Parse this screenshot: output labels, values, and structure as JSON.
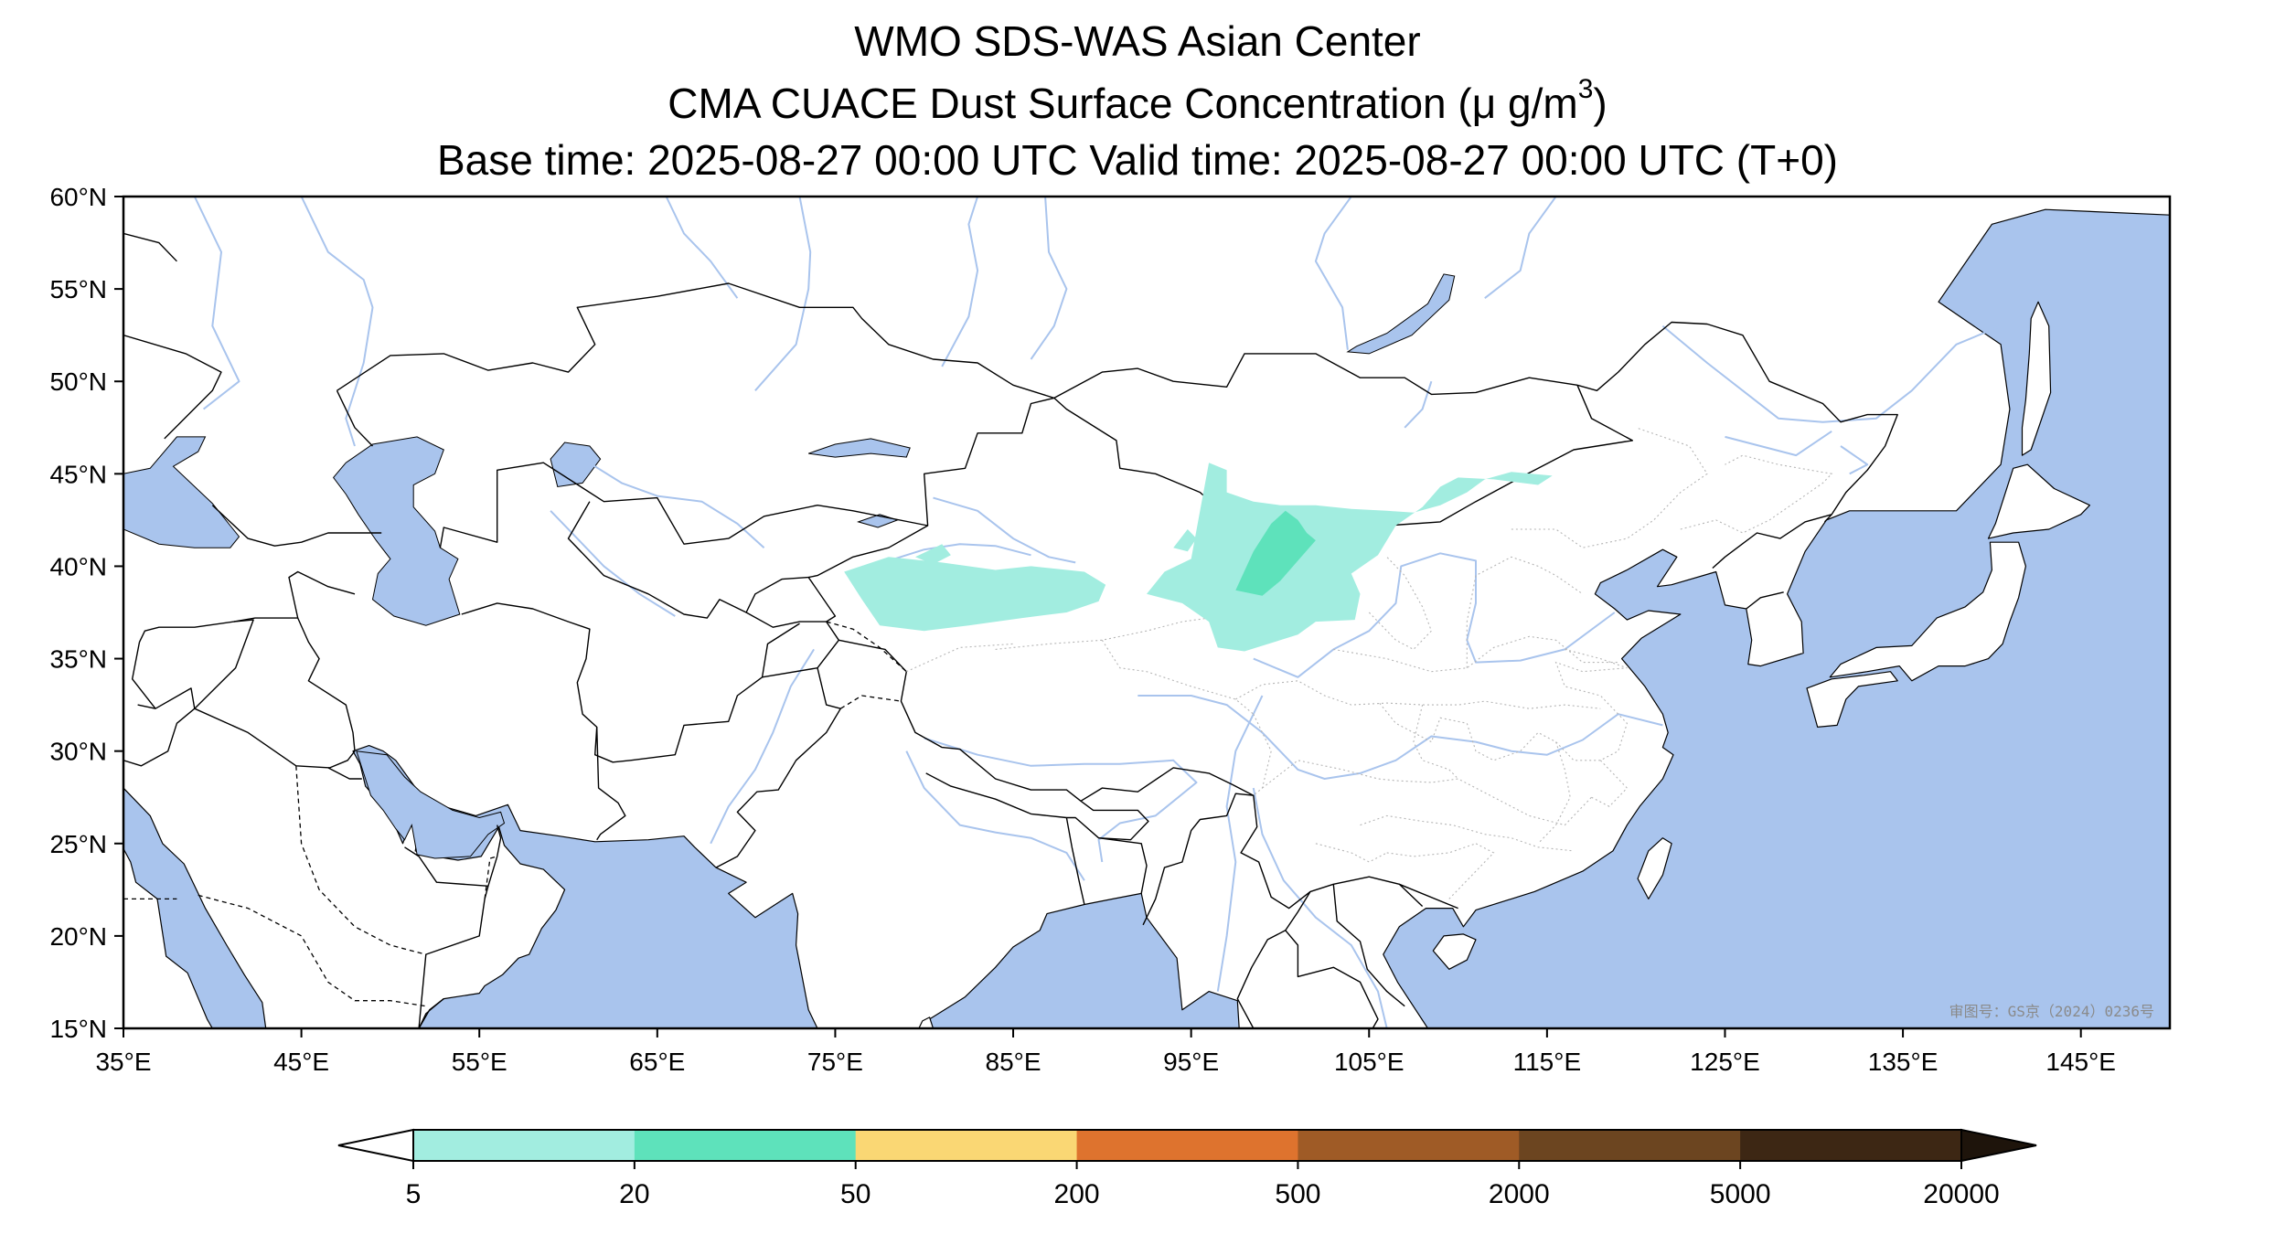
{
  "title": {
    "line1": "WMO SDS-WAS Asian Center",
    "line2_main": "CMA CUACE Dust Surface Concentration (μ g/m",
    "line2_sup": "3",
    "line2_end": ")",
    "line3": "Base time: 2025-08-27 00:00 UTC Valid time: 2025-08-27 00:00 UTC (T+0)"
  },
  "map": {
    "lon_range": [
      35,
      150
    ],
    "lat_range": [
      15,
      60
    ],
    "lon_ticks": [
      {
        "value": 35,
        "label": "35°E"
      },
      {
        "value": 45,
        "label": "45°E"
      },
      {
        "value": 55,
        "label": "55°E"
      },
      {
        "value": 65,
        "label": "65°E"
      },
      {
        "value": 75,
        "label": "75°E"
      },
      {
        "value": 85,
        "label": "85°E"
      },
      {
        "value": 95,
        "label": "95°E"
      },
      {
        "value": 105,
        "label": "105°E"
      },
      {
        "value": 115,
        "label": "115°E"
      },
      {
        "value": 125,
        "label": "125°E"
      },
      {
        "value": 135,
        "label": "135°E"
      },
      {
        "value": 145,
        "label": "145°E"
      }
    ],
    "lat_ticks": [
      {
        "value": 60,
        "label": "60°N"
      },
      {
        "value": 55,
        "label": "55°N"
      },
      {
        "value": 50,
        "label": "50°N"
      },
      {
        "value": 45,
        "label": "45°N"
      },
      {
        "value": 40,
        "label": "40°N"
      },
      {
        "value": 35,
        "label": "35°N"
      },
      {
        "value": 30,
        "label": "30°N"
      },
      {
        "value": 25,
        "label": "25°N"
      },
      {
        "value": 20,
        "label": "20°N"
      },
      {
        "value": 15,
        "label": "15°N"
      }
    ],
    "ocean_color": "#a9c4ed",
    "land_color": "#ffffff",
    "border_color": "#000000",
    "river_color": "#a9c4ed",
    "credit_text": "审图号：GS京（2024）0236号"
  },
  "dust_regions": [
    {
      "name": "tarim-basin",
      "level": 0,
      "points": [
        [
          75.5,
          39.7
        ],
        [
          78,
          40.5
        ],
        [
          81,
          40.2
        ],
        [
          84,
          39.8
        ],
        [
          86,
          40
        ],
        [
          89,
          39.7
        ],
        [
          90.2,
          39
        ],
        [
          89.8,
          38.1
        ],
        [
          88,
          37.5
        ],
        [
          85.5,
          37.2
        ],
        [
          82.5,
          36.8
        ],
        [
          80,
          36.5
        ],
        [
          77.5,
          36.8
        ],
        [
          76.5,
          38.2
        ]
      ]
    },
    {
      "name": "tarim-north-fleck",
      "level": 0,
      "points": [
        [
          79.5,
          40.5
        ],
        [
          81,
          41.2
        ],
        [
          81.5,
          40.6
        ],
        [
          80.5,
          40.1
        ]
      ]
    },
    {
      "name": "gobi-plume",
      "level": 0,
      "points": [
        [
          92.5,
          38.5
        ],
        [
          93.5,
          39.7
        ],
        [
          95,
          40.4
        ],
        [
          95.5,
          43
        ],
        [
          96,
          45.6
        ],
        [
          97,
          45.2
        ],
        [
          97,
          44
        ],
        [
          98.5,
          43.5
        ],
        [
          100,
          43.3
        ],
        [
          102,
          43.3
        ],
        [
          104,
          43.1
        ],
        [
          106,
          43
        ],
        [
          107.5,
          42.9
        ],
        [
          109,
          43.3
        ],
        [
          110.5,
          44
        ],
        [
          111.5,
          44.7
        ],
        [
          113,
          45.1
        ],
        [
          115.3,
          44.9
        ],
        [
          114.5,
          44.4
        ],
        [
          112,
          44.7
        ],
        [
          110,
          44.8
        ],
        [
          109,
          44.3
        ],
        [
          108,
          43.2
        ],
        [
          106.5,
          42.2
        ],
        [
          105.5,
          40.6
        ],
        [
          104,
          39.6
        ],
        [
          104.5,
          38.5
        ],
        [
          104.2,
          37.1
        ],
        [
          102,
          37
        ],
        [
          101,
          36.3
        ],
        [
          98,
          35.4
        ],
        [
          96.5,
          35.6
        ],
        [
          96,
          37
        ],
        [
          94.5,
          38
        ]
      ]
    },
    {
      "name": "gobi-west-fleck",
      "level": 0,
      "points": [
        [
          94,
          41
        ],
        [
          94.8,
          42
        ],
        [
          95.3,
          41.5
        ],
        [
          94.8,
          40.8
        ]
      ]
    },
    {
      "name": "gobi-core",
      "level": 1,
      "points": [
        [
          97.5,
          38.7
        ],
        [
          98.5,
          40.8
        ],
        [
          99.5,
          42.3
        ],
        [
          100.3,
          43
        ],
        [
          101,
          42.5
        ],
        [
          101.5,
          41.8
        ],
        [
          102,
          41.4
        ],
        [
          101,
          40.3
        ],
        [
          100,
          39.2
        ],
        [
          99,
          38.4
        ]
      ]
    }
  ],
  "colorbar": {
    "levels": [
      {
        "color": "#a2ede0"
      },
      {
        "color": "#5ee2bb"
      },
      {
        "color": "#fad774"
      },
      {
        "color": "#de732e"
      },
      {
        "color": "#9f5b26"
      },
      {
        "color": "#6c4520"
      },
      {
        "color": "#3d2714"
      }
    ],
    "under_color": "#ffffff",
    "over_color": "#1e140b",
    "tick_labels": [
      "5",
      "20",
      "50",
      "200",
      "500",
      "2000",
      "5000",
      "20000"
    ]
  }
}
